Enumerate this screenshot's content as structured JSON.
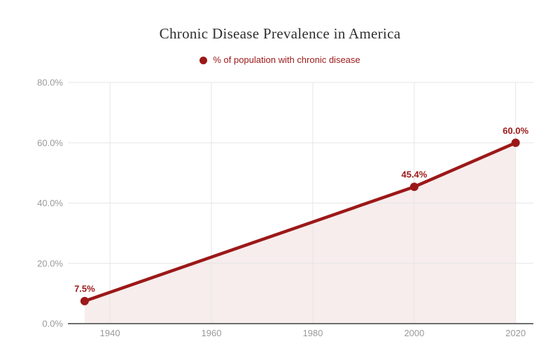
{
  "chart": {
    "title": "Chronic Disease Prevalence in America",
    "legend": {
      "label": "% of population with chronic disease",
      "marker": "circle-icon"
    },
    "colors": {
      "series": "#9c1818",
      "area_fill": "#f7eded",
      "gridline": "#e6e6e6",
      "axis_line": "#6f6f6f",
      "tick_label": "#9a9a9a",
      "title_text": "#2f2f2f"
    }
  },
  "chart_data": {
    "type": "line",
    "title": "Chronic Disease Prevalence in America",
    "legend": [
      "% of population with chronic disease"
    ],
    "legend_position": "top-center",
    "grid": true,
    "area_fill": true,
    "xlabel": "",
    "ylabel": "",
    "xlim": [
      1931.7,
      2023.5
    ],
    "ylim": [
      0,
      80
    ],
    "series": [
      {
        "name": "% of population with chronic disease",
        "points": [
          {
            "x": 1935,
            "y": 7.5,
            "label": "7.5%"
          },
          {
            "x": 2000,
            "y": 45.4,
            "label": "45.4%"
          },
          {
            "x": 2020,
            "y": 60.0,
            "label": "60.0%"
          }
        ]
      }
    ],
    "x_ticks": [
      {
        "value": 1940,
        "label": "1940"
      },
      {
        "value": 1960,
        "label": "1960"
      },
      {
        "value": 1980,
        "label": "1980"
      },
      {
        "value": 2000,
        "label": "2000"
      },
      {
        "value": 2020,
        "label": "2020"
      }
    ],
    "y_ticks": [
      {
        "value": 0,
        "label": "0.0%"
      },
      {
        "value": 20,
        "label": "20.0%"
      },
      {
        "value": 40,
        "label": "40.0%"
      },
      {
        "value": 60,
        "label": "60.0%"
      },
      {
        "value": 80,
        "label": "80.0%"
      }
    ]
  }
}
